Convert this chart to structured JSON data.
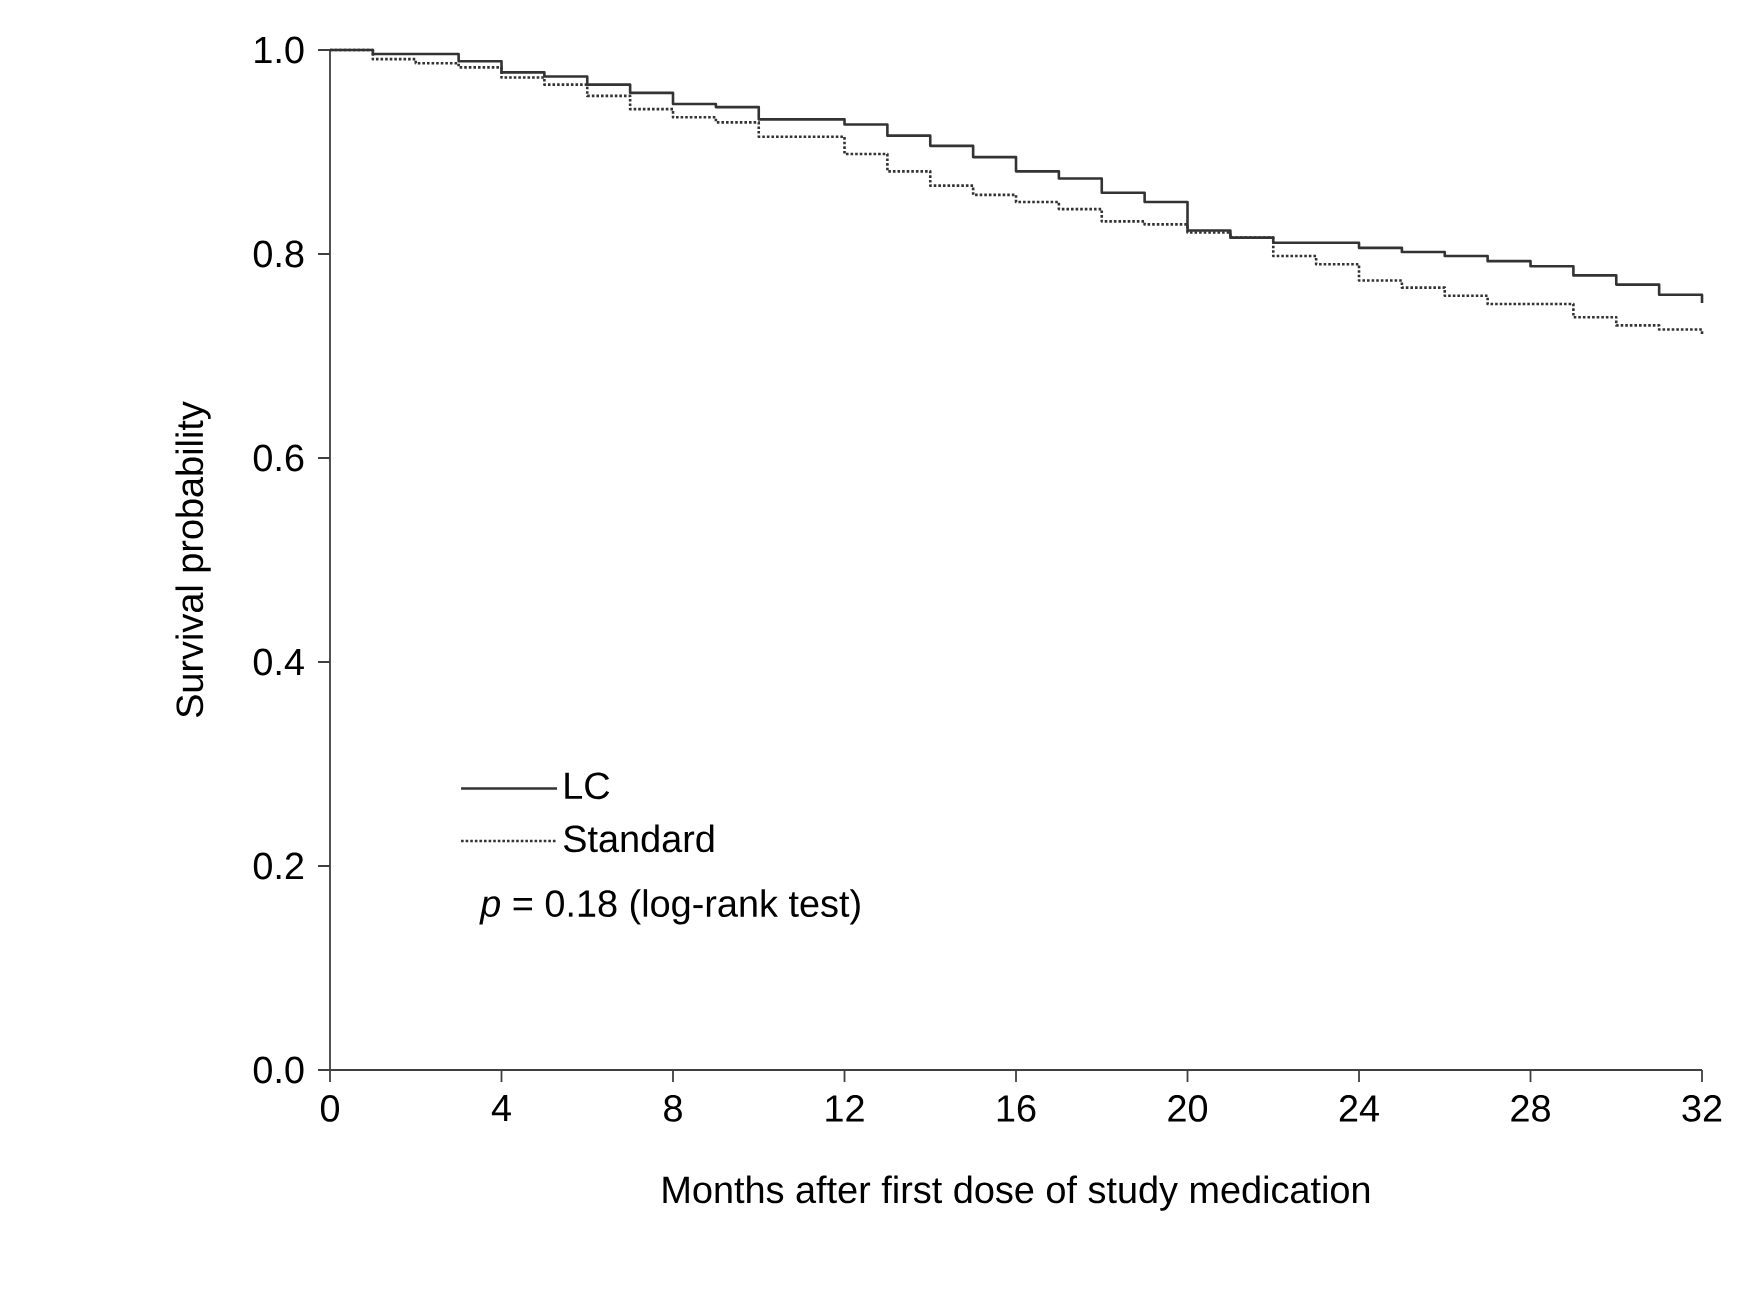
{
  "chart_data": {
    "type": "step",
    "xlabel": "Months after first dose of study medication",
    "ylabel": "Survival probability",
    "xlim": [
      0,
      32
    ],
    "ylim": [
      0,
      1
    ],
    "xticks": [
      0,
      4,
      8,
      12,
      16,
      20,
      24,
      28,
      32
    ],
    "yticks": [
      {
        "value": 0,
        "label": "0.0"
      },
      {
        "value": 0.2,
        "label": "0.2"
      },
      {
        "value": 0.4,
        "label": "0.4"
      },
      {
        "value": 0.6,
        "label": "0.6"
      },
      {
        "value": 0.8,
        "label": "0.8"
      },
      {
        "value": 1,
        "label": "1.0"
      }
    ],
    "legend": "bottom left",
    "annotations": [
      "*p* = 0.18 (log-rank test)"
    ],
    "series": [
      {
        "name": "LC",
        "color": "#333333",
        "line_style": "solid",
        "x": [
          0,
          1,
          3,
          4,
          5,
          6,
          7,
          8,
          9,
          10,
          12,
          13,
          14,
          15,
          16,
          17,
          18,
          19,
          20,
          21,
          22,
          24,
          25,
          26,
          27,
          28,
          29,
          30,
          31,
          32
        ],
        "values": [
          1.0,
          0.996,
          0.989,
          0.978,
          0.974,
          0.966,
          0.958,
          0.947,
          0.944,
          0.932,
          0.927,
          0.916,
          0.906,
          0.895,
          0.881,
          0.874,
          0.86,
          0.851,
          0.823,
          0.816,
          0.811,
          0.806,
          0.802,
          0.798,
          0.793,
          0.788,
          0.779,
          0.77,
          0.76,
          0.752
        ]
      },
      {
        "name": "Standard",
        "color": "#333333",
        "line_style": "dotted",
        "x": [
          0,
          1,
          2,
          3,
          4,
          5,
          6,
          7,
          8,
          9,
          10,
          12,
          13,
          14,
          15,
          16,
          17,
          18,
          19,
          20,
          21,
          22,
          23,
          24,
          25,
          26,
          27,
          29,
          30,
          31,
          32
        ],
        "values": [
          1.0,
          0.991,
          0.987,
          0.983,
          0.973,
          0.966,
          0.955,
          0.942,
          0.934,
          0.929,
          0.915,
          0.898,
          0.881,
          0.867,
          0.858,
          0.851,
          0.844,
          0.832,
          0.829,
          0.821,
          0.816,
          0.798,
          0.79,
          0.774,
          0.767,
          0.759,
          0.751,
          0.738,
          0.73,
          0.726,
          0.72
        ]
      }
    ]
  }
}
